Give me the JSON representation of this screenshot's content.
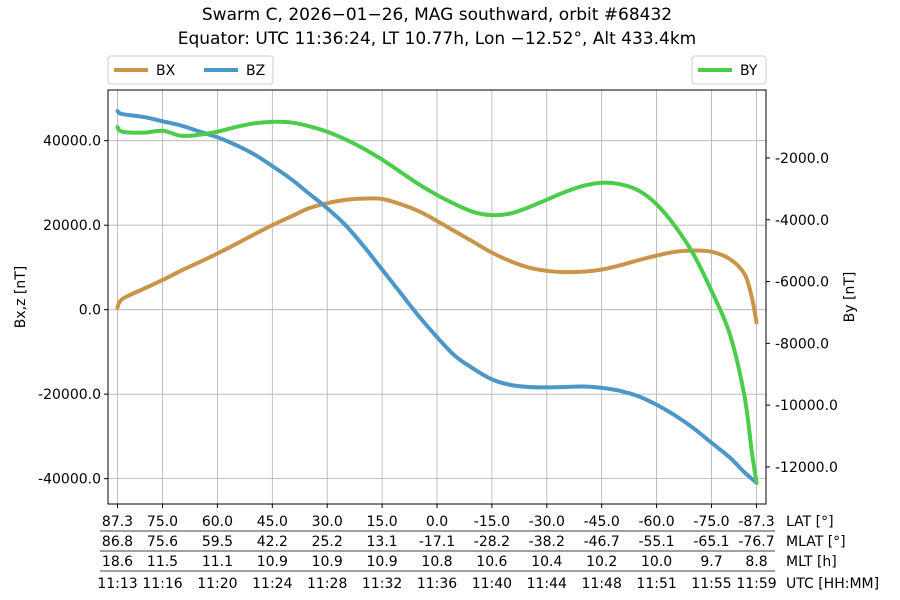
{
  "chart_data": {
    "type": "line",
    "title_line1": "Swarm C, 2026−01−26, MAG southward, orbit #68432",
    "title_line2": "Equator: UTC 11:36:24, LT 10.77h, Lon −12.52°, Alt 433.4km",
    "ylabel_left": "Bx,z [nT]",
    "ylabel_right": "By [nT]",
    "ylim_left": [
      -46000,
      52000
    ],
    "ylim_right": [
      -13200,
      200
    ],
    "yticks_left": [
      "40000.0",
      "20000.0",
      "0.0",
      "-20000.0",
      "-40000.0"
    ],
    "yticks_right": [
      "-2000.0",
      "-4000.0",
      "-6000.0",
      "-8000.0",
      "-10000.0",
      "-12000.0"
    ],
    "grid": true,
    "legend_left": "top-left",
    "legend_right": "top-right",
    "x_rows": [
      {
        "label": "LAT [°]",
        "values": [
          "87.3",
          "75.0",
          "60.0",
          "45.0",
          "30.0",
          "15.0",
          "0.0",
          "-15.0",
          "-30.0",
          "-45.0",
          "-60.0",
          "-75.0",
          "-87.3"
        ]
      },
      {
        "label": "MLAT [°]",
        "values": [
          "86.8",
          "75.6",
          "59.5",
          "42.2",
          "25.2",
          "13.1",
          "-17.1",
          "-28.2",
          "-38.2",
          "-46.7",
          "-55.1",
          "-65.1",
          "-76.7"
        ]
      },
      {
        "label": "MLT [h]",
        "values": [
          "18.6",
          "11.5",
          "11.1",
          "10.9",
          "10.9",
          "10.9",
          "10.8",
          "10.6",
          "10.4",
          "10.2",
          "10.0",
          "9.7",
          "8.8"
        ]
      },
      {
        "label": "UTC [HH:MM]",
        "values": [
          "11:13",
          "11:16",
          "11:20",
          "11:24",
          "11:28",
          "11:32",
          "11:36",
          "11:40",
          "11:44",
          "11:48",
          "11:51",
          "11:55",
          "11:59"
        ]
      }
    ],
    "x": [
      87.3,
      86.0,
      80.0,
      75.0,
      70.0,
      65.0,
      60.0,
      55.0,
      50.0,
      45.0,
      40.0,
      35.0,
      30.0,
      25.0,
      20.0,
      15.0,
      10.0,
      5.0,
      0.0,
      -5.0,
      -10.0,
      -15.0,
      -20.0,
      -25.0,
      -30.0,
      -35.0,
      -40.0,
      -45.0,
      -50.0,
      -55.0,
      -60.0,
      -65.0,
      -70.0,
      -75.0,
      -80.0,
      -84.0,
      -86.0,
      -87.3
    ],
    "series": [
      {
        "name": "BX",
        "axis": "left",
        "color": "#c8954a",
        "values": [
          500,
          2500,
          5000,
          7000,
          9200,
          11200,
          13300,
          15500,
          17800,
          20000,
          22000,
          24000,
          25200,
          26000,
          26300,
          26200,
          25000,
          23300,
          21000,
          18500,
          16000,
          13500,
          11500,
          10000,
          9200,
          8900,
          9000,
          9500,
          10500,
          11700,
          12800,
          13700,
          14000,
          13700,
          12000,
          8500,
          3000,
          -3000
        ]
      },
      {
        "name": "BZ",
        "axis": "left",
        "color": "#4a97c8",
        "values": [
          47000,
          46300,
          45600,
          44600,
          43600,
          42200,
          40800,
          39000,
          36800,
          34000,
          31000,
          27500,
          24000,
          20000,
          15000,
          9500,
          4000,
          -1500,
          -6500,
          -11000,
          -14000,
          -16500,
          -17800,
          -18300,
          -18400,
          -18300,
          -18200,
          -18500,
          -19200,
          -20500,
          -22500,
          -25000,
          -28000,
          -31500,
          -35000,
          -38500,
          -40000,
          -41000
        ]
      },
      {
        "name": "BY",
        "axis": "right",
        "color": "#4bcc4b",
        "values": [
          -1000,
          -1150,
          -1180,
          -1120,
          -1280,
          -1250,
          -1150,
          -1000,
          -880,
          -830,
          -850,
          -970,
          -1150,
          -1400,
          -1700,
          -2050,
          -2450,
          -2850,
          -3200,
          -3500,
          -3750,
          -3850,
          -3800,
          -3600,
          -3350,
          -3100,
          -2900,
          -2800,
          -2850,
          -3050,
          -3500,
          -4200,
          -5100,
          -6300,
          -7700,
          -9700,
          -11500,
          -12500
        ]
      }
    ]
  }
}
